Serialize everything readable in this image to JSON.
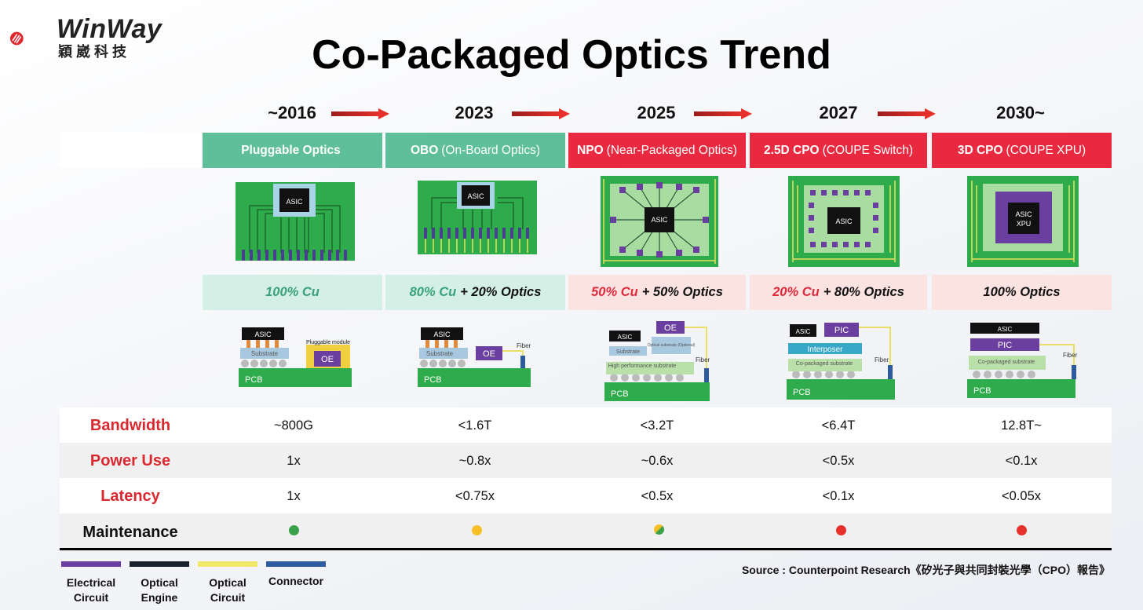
{
  "brand": {
    "name": "WinWay",
    "chinese_name": "穎崴科技"
  },
  "title": "Co-Packaged Optics Trend",
  "timeline": [
    {
      "year": "~2016",
      "abbr": "Pluggable Optics",
      "full": "",
      "ratio_cu": "100% Cu",
      "ratio_optics": ""
    },
    {
      "year": "2023",
      "abbr": "OBO",
      "full": "(On-Board Optics)",
      "ratio_cu": "80% Cu",
      "ratio_optics": "+ 20% Optics"
    },
    {
      "year": "2025",
      "abbr": "NPO",
      "full": "(Near-Packaged Optics)",
      "ratio_cu": "50% Cu",
      "ratio_optics": "+ 50% Optics"
    },
    {
      "year": "2027",
      "abbr": "2.5D CPO",
      "full": "(COUPE Switch)",
      "ratio_cu": "20% Cu",
      "ratio_optics": "+ 80% Optics"
    },
    {
      "year": "2030~",
      "abbr": "3D CPO",
      "full": "(COUPE XPU)",
      "ratio_cu": "",
      "ratio_optics": "100% Optics"
    }
  ],
  "diagram_labels": {
    "asic": "ASIC",
    "asic_xpu": [
      "ASIC",
      "XPU"
    ],
    "substrate": "Substrate",
    "pluggable_module": "Pluggable module",
    "oe": "OE",
    "pcb": "PCB",
    "fiber": "Fiber",
    "optical_substrate": "Optical substrate (Optional)",
    "high_perf_substrate": "High performance substrate",
    "pic": "PIC",
    "interposer": "Interposer",
    "co_packaged_substrate": "Co-packaged substrate"
  },
  "metrics": [
    {
      "label": "Bandwidth",
      "values": [
        "~800G",
        "<1.6T",
        "<3.2T",
        "<6.4T",
        "12.8T~"
      ]
    },
    {
      "label": "Power Use",
      "values": [
        "1x",
        "~0.8x",
        "~0.6x",
        "<0.5x",
        "<0.1x"
      ]
    },
    {
      "label": "Latency",
      "values": [
        "1x",
        "<0.75x",
        "<0.5x",
        "<0.1x",
        "<0.05x"
      ]
    }
  ],
  "maintenance": {
    "label": "Maintenance",
    "dot_colors": [
      "#3aa04a",
      "#f6bf26",
      "mixed",
      "#e8302a",
      "#e8302a"
    ]
  },
  "legend": [
    {
      "label": [
        "Electrical",
        "Circuit"
      ],
      "color": "#6b3fa0"
    },
    {
      "label": [
        "Optical",
        "Engine"
      ],
      "color": "#1a2230"
    },
    {
      "label": [
        "Optical",
        "Circuit"
      ],
      "color": "#f0e868"
    },
    {
      "label": [
        "Connector"
      ],
      "color": "#2e5aa0"
    }
  ],
  "source": "Source : Counterpoint Research《矽光子與共同封裝光學（CPO）報告》",
  "colors": {
    "green_header": "#5fbf9b",
    "red_header": "#e8293f",
    "metric_label": "#d9292f"
  }
}
